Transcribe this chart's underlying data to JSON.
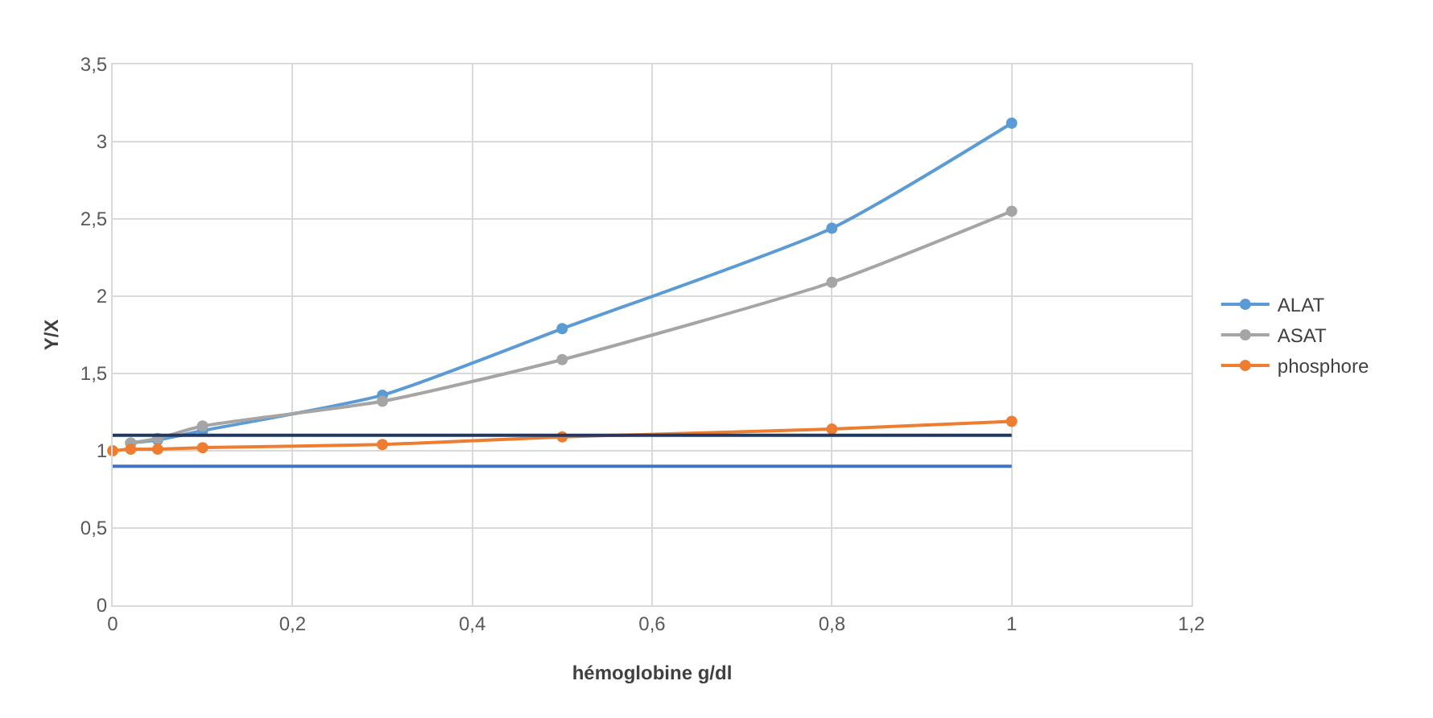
{
  "chart_data": {
    "type": "line",
    "xlabel": "hémoglobine g/dl",
    "ylabel": "Y/X",
    "xlim": [
      0,
      1.2
    ],
    "ylim": [
      0,
      3.5
    ],
    "xticks": [
      0,
      {
        "value": 0.2,
        "label": "0,2"
      },
      {
        "value": 0.4,
        "label": "0,4"
      },
      {
        "value": 0.6,
        "label": "0,6"
      },
      {
        "value": 0.8,
        "label": "0,8"
      },
      1,
      {
        "value": 1.2,
        "label": "1,2"
      }
    ],
    "yticks": [
      0,
      {
        "value": 0.5,
        "label": "0,5"
      },
      1,
      {
        "value": 1.5,
        "label": "1,5"
      },
      2,
      {
        "value": 2.5,
        "label": "2,5"
      },
      3,
      {
        "value": 3.5,
        "label": "3,5"
      }
    ],
    "grid": true,
    "legend": "right",
    "marker": "circle",
    "series": [
      {
        "name": "ALAT",
        "color": "#5b9bd5",
        "x": [
          0.02,
          0.05,
          0.1,
          0.3,
          0.5,
          0.8,
          1
        ],
        "values": [
          1.05,
          1.07,
          1.13,
          1.36,
          1.79,
          2.44,
          3.12
        ]
      },
      {
        "name": "ASAT",
        "color": "#a5a5a5",
        "x": [
          0.02,
          0.05,
          0.1,
          0.3,
          0.5,
          0.8,
          1
        ],
        "values": [
          1.05,
          1.08,
          1.16,
          1.32,
          1.59,
          2.09,
          2.55
        ]
      },
      {
        "name": "phosphore",
        "color": "#ed7d31",
        "x": [
          0,
          0.02,
          0.05,
          0.1,
          0.3,
          0.5,
          0.8,
          1
        ],
        "values": [
          1.0,
          1.01,
          1.01,
          1.02,
          1.04,
          1.09,
          1.14,
          1.19
        ]
      },
      {
        "color": "#203864",
        "marker": "none",
        "x": [
          0,
          1
        ],
        "values": [
          1.1,
          1.1
        ]
      },
      {
        "color": "#4472c4",
        "marker": "none",
        "x": [
          0,
          1
        ],
        "values": [
          0.9,
          0.9
        ]
      }
    ]
  }
}
